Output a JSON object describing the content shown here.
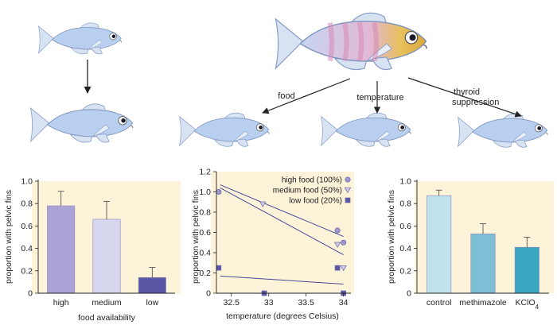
{
  "arrows": {
    "food": "food",
    "temperature": "temperature",
    "thyroid_line1": "thyroid",
    "thyroid_line2": "suppression"
  },
  "colors": {
    "panel_bg": "#fcf3d9",
    "fish_body": "#b9cff0",
    "fish_fin": "#d7e2f3",
    "parent_orange": "#e8b04a",
    "parent_pink": "#e8a8c8"
  },
  "chart_data": [
    {
      "type": "bar",
      "categories": [
        "high",
        "medium",
        "low"
      ],
      "values": [
        0.78,
        0.66,
        0.14
      ],
      "errors": [
        0.13,
        0.16,
        0.09
      ],
      "colors": [
        "#a9a3d6",
        "#d6d6ee",
        "#5b57a7"
      ],
      "title": "",
      "xlabel": "food availability",
      "ylabel": "proportion with pelvic fins",
      "ylim": [
        0,
        1.0
      ],
      "yticks": [
        "0",
        "0.2",
        "0.4",
        "0.6",
        "0.8",
        "1.0"
      ]
    },
    {
      "type": "scatter",
      "title": "",
      "xlabel": "temperature (degrees Celsius)",
      "ylabel": "proportion with pelvic fins",
      "xlim": [
        32.3,
        34.1
      ],
      "ylim": [
        0,
        1.2
      ],
      "xticks": [
        "32.5",
        "33",
        "33.5",
        "34"
      ],
      "yticks": [
        "0",
        "0.2",
        "0.4",
        "0.6",
        "0.8",
        "1.0",
        "1.2"
      ],
      "legend_position": "top-right",
      "series": [
        {
          "name": "high food (100%)",
          "marker": "circle",
          "color": "#9d97d0",
          "x": [
            32.33,
            33.92,
            34.0
          ],
          "y": [
            1.0,
            0.62,
            0.5
          ],
          "fit": [
            [
              32.35,
              1.07
            ],
            [
              34.0,
              0.56
            ]
          ]
        },
        {
          "name": "medium food (50%)",
          "marker": "triangle",
          "color": "#cfcfea",
          "x": [
            32.92,
            33.92,
            34.0
          ],
          "y": [
            0.88,
            0.48,
            0.25
          ],
          "fit": [
            [
              32.35,
              1.04
            ],
            [
              34.0,
              0.38
            ]
          ]
        },
        {
          "name": "low food (20%)",
          "marker": "square",
          "color": "#5b57a7",
          "x": [
            32.33,
            32.94,
            33.92,
            34.0
          ],
          "y": [
            0.25,
            0.0,
            0.25,
            0.0
          ],
          "fit": [
            [
              32.35,
              0.17
            ],
            [
              34.0,
              0.09
            ]
          ]
        }
      ]
    },
    {
      "type": "bar",
      "categories": [
        "control",
        "methimazole",
        "KClO"
      ],
      "category_subscripts": [
        "",
        "",
        "4"
      ],
      "values": [
        0.87,
        0.53,
        0.41
      ],
      "errors": [
        0.05,
        0.09,
        0.09
      ],
      "colors": [
        "#bfe2ee",
        "#7ebfd6",
        "#3aa6c2"
      ],
      "title": "",
      "xlabel": "",
      "ylabel": "proportion with pelvic fins",
      "ylim": [
        0,
        1.0
      ],
      "yticks": [
        "0",
        "0.2",
        "0.4",
        "0.6",
        "0.8",
        "1.0"
      ]
    }
  ]
}
